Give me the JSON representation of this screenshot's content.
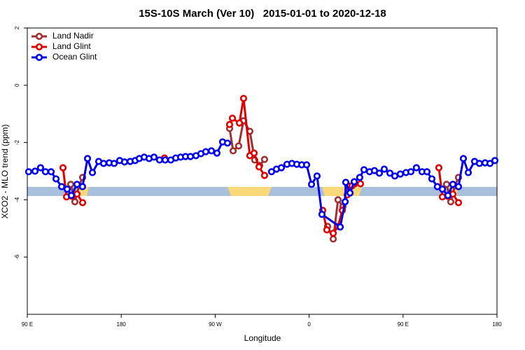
{
  "chart_data": {
    "type": "line",
    "title": "15S-10S March (Ver 10)   2015-01-01 to 2020-12-18",
    "xlabel": "Longitude",
    "ylabel": "XCO2 - MLO trend (ppm)",
    "xlim": [
      90,
      540
    ],
    "ylim": [
      -8,
      2
    ],
    "xticks": [
      {
        "value": 90,
        "label": "90 E"
      },
      180,
      {
        "value": 270,
        "label": "90 W"
      },
      {
        "value": 360,
        "label": "0"
      },
      {
        "value": 450,
        "label": "90 E"
      },
      {
        "value": 540,
        "label": "180"
      }
    ],
    "yticks": [
      2,
      0,
      -2,
      -4,
      -6
    ],
    "legend": "top-left",
    "series": [
      {
        "name": "Land Nadir",
        "color": "#a03030",
        "x": [
          131.6,
          135.6,
          139.6,
          143.0,
          null,
          283.8,
          287.2,
          292.5,
          297.2,
          303.2,
          307.9,
          312.6,
          317.3,
          null,
          377.7,
          383.1,
          387.7,
          392.4,
          397.1,
          403.8,
          null,
          491.7,
          495.7,
          499.7,
          503.1
        ],
        "values": [
          -3.46,
          -4.07,
          -3.51,
          -3.22,
          null,
          -1.51,
          -2.29,
          -2.12,
          -1.24,
          -1.61,
          -2.61,
          -2.8,
          -2.59,
          null,
          -4.93,
          -5.37,
          -4.0,
          -4.24,
          -3.51,
          -3.44,
          null,
          -3.46,
          -4.07,
          -3.51,
          -3.22
        ]
      },
      {
        "name": "Land Glint",
        "color": "#e00000",
        "x": [
          124.2,
          127.6,
          132.9,
          137.6,
          143.0,
          null,
          221.4,
          null,
          283.8,
          286.5,
          293.2,
          297.2,
          303.2,
          307.3,
          312.0,
          317.3,
          null,
          373.0,
          377.0,
          383.1,
          387.7,
          391.8,
          396.5,
          401.2,
          409.2,
          null,
          484.3,
          487.7,
          493.0,
          497.7,
          503.1
        ],
        "values": [
          -2.88,
          -3.9,
          -3.88,
          -3.8,
          -4.1,
          null,
          -2.54,
          null,
          -1.37,
          -1.15,
          -1.32,
          -0.46,
          -2.46,
          -2.37,
          -2.85,
          -3.15,
          null,
          -4.37,
          -5.05,
          -5.17,
          -4.93,
          -4.37,
          -3.83,
          -3.51,
          -3.44,
          null,
          -2.88,
          -3.9,
          -3.88,
          -3.8,
          -4.1
        ]
      },
      {
        "name": "Ocean Glint",
        "color": "#0000ee",
        "x": [
          91.3,
          97.4,
          102.7,
          107.4,
          112.8,
          117.5,
          122.9,
          128.2,
          132.2,
          137.6,
          142.9,
          147.7,
          152.4,
          158.4,
          163.1,
          168.5,
          173.2,
          178.5,
          183.2,
          188.6,
          193.3,
          197.3,
          202.0,
          206.7,
          211.4,
          216.7,
          222.1,
          227.5,
          232.2,
          236.9,
          241.6,
          246.3,
          251.6,
          256.3,
          261.0,
          266.4,
          271.7,
          277.1,
          281.8,
          null,
          324.0,
          328.7,
          333.4,
          338.8,
          343.5,
          348.2,
          352.9,
          357.6,
          362.3,
          367.6,
          372.3,
          389.8,
          394.5,
          395.1,
          399.2,
          403.2,
          408.5,
          412.6,
          417.9,
          422.6,
          427.3,
          432.0,
          437.4,
          442.1,
          447.4,
          452.8,
          457.5,
          462.8,
          468.2,
          472.9,
          477.6,
          482.9,
          487.7,
          493.0,
          497.7,
          503.1,
          507.8,
          512.5,
          518.5,
          523.2,
          528.6,
          533.3,
          538.0
        ],
        "values": [
          -3.02,
          -3.0,
          -2.88,
          -3.02,
          -3.02,
          -3.27,
          -3.54,
          -3.63,
          -3.85,
          -3.46,
          -3.54,
          -2.56,
          -3.05,
          -2.66,
          -2.73,
          -2.71,
          -2.73,
          -2.63,
          -2.68,
          -2.66,
          -2.63,
          -2.56,
          -2.51,
          -2.56,
          -2.51,
          -2.61,
          -2.61,
          -2.61,
          -2.54,
          -2.51,
          -2.49,
          -2.49,
          -2.46,
          -2.39,
          -2.32,
          -2.29,
          -2.37,
          -1.98,
          -2.02,
          null,
          -3.02,
          -2.93,
          -2.88,
          -2.76,
          -2.73,
          -2.76,
          -2.78,
          -2.78,
          -3.46,
          -3.17,
          -4.51,
          -4.95,
          -4.07,
          -3.39,
          -3.76,
          -3.37,
          -3.22,
          -2.95,
          -3.02,
          -2.98,
          -3.07,
          -2.93,
          -3.07,
          -3.17,
          -3.1,
          -3.05,
          -3.02,
          -2.88,
          -3.02,
          -3.02,
          -3.27,
          -3.54,
          -3.63,
          -3.85,
          -3.46,
          -3.54,
          -2.56,
          -3.05,
          -2.66,
          -2.73,
          -2.71,
          -2.73,
          -2.63
        ]
      }
    ]
  }
}
